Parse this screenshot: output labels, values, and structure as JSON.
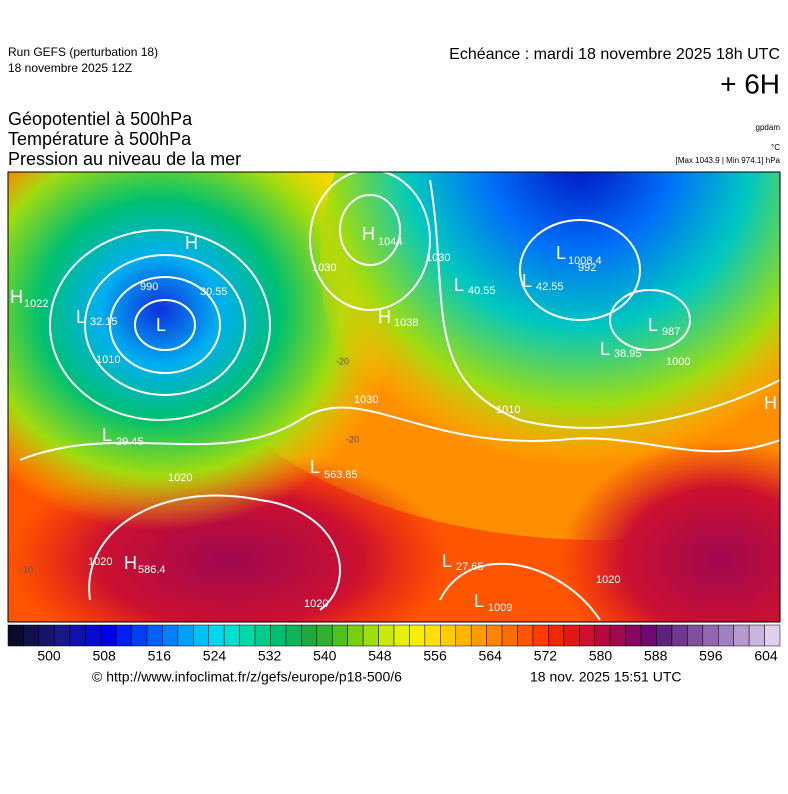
{
  "header": {
    "run": "Run GEFS (perturbation 18)",
    "run_date": "18 novembre 2025 12Z",
    "valid": "Echéance : mardi 18 novembre 2025 18h UTC",
    "lead": "+ 6H"
  },
  "titles": [
    "Géopotentiel à 500hPa",
    "Température à 500hPa",
    "Pression au niveau de la mer"
  ],
  "units": {
    "geopotential": "gpdam",
    "temperature": "°C",
    "pressure": "[Max 1043.9 | Min 974.1] hPa"
  },
  "map": {
    "labels": [
      "H",
      "1022",
      "L",
      "32.15",
      "990",
      "H",
      "30.55",
      "L",
      "1010",
      "H",
      "1044",
      "1030",
      "1030",
      "H",
      "1038",
      "L",
      "40.55",
      "L",
      "42.55",
      "L",
      "1008.4",
      "992",
      "L",
      "987",
      "L",
      "38.95",
      "1000",
      "1010",
      "L",
      "29.45",
      "1020",
      "L",
      "563.85",
      "1030",
      "H",
      "586.4",
      "1020",
      "L",
      "27.65",
      "L",
      "1009",
      "1020",
      "1020",
      "H",
      "-20",
      "-20",
      "-10"
    ]
  },
  "colorbar": {
    "ticks": [
      500,
      508,
      516,
      524,
      532,
      540,
      548,
      556,
      564,
      572,
      580,
      588,
      596,
      604
    ],
    "colors": [
      "#0a0a2a",
      "#10104a",
      "#14146a",
      "#18188a",
      "#1010aa",
      "#0a0acc",
      "#0000e6",
      "#0020f0",
      "#0040f5",
      "#0060f8",
      "#0080fa",
      "#00a0fa",
      "#00c0f5",
      "#00d8f0",
      "#00e0d0",
      "#00d8a8",
      "#00cc88",
      "#00c070",
      "#10b458",
      "#20a840",
      "#30b030",
      "#50c020",
      "#78d010",
      "#a0dc10",
      "#c8e810",
      "#e6f010",
      "#f8f000",
      "#ffe000",
      "#ffcc00",
      "#ffb400",
      "#ff9c00",
      "#ff8400",
      "#ff6c00",
      "#ff5400",
      "#ff3c00",
      "#f02800",
      "#e01818",
      "#cc1030",
      "#b80840",
      "#a00850",
      "#880860",
      "#700870",
      "#602080",
      "#703890",
      "#8050a0",
      "#9068b0",
      "#a080c0",
      "#b898d0",
      "#ccb4e0",
      "#e0d0ee"
    ]
  },
  "footer": {
    "source": "© http://www.infoclimat.fr/z/gefs/europe/p18-500/6",
    "generated": "18 nov. 2025 15:51 UTC"
  }
}
